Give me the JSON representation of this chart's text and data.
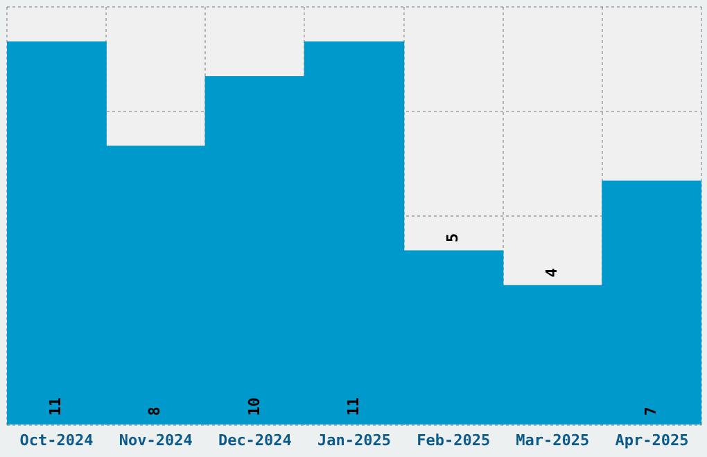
{
  "chart_data": {
    "type": "bar",
    "categories": [
      "Oct-2024",
      "Nov-2024",
      "Dec-2024",
      "Jan-2025",
      "Feb-2025",
      "Mar-2025",
      "Apr-2025"
    ],
    "values": [
      11,
      8,
      10,
      11,
      5,
      4,
      7
    ],
    "color": "#0099cc",
    "data_labels": true,
    "ylim": [
      0,
      12
    ],
    "grid": true,
    "tick_labels": "x"
  }
}
